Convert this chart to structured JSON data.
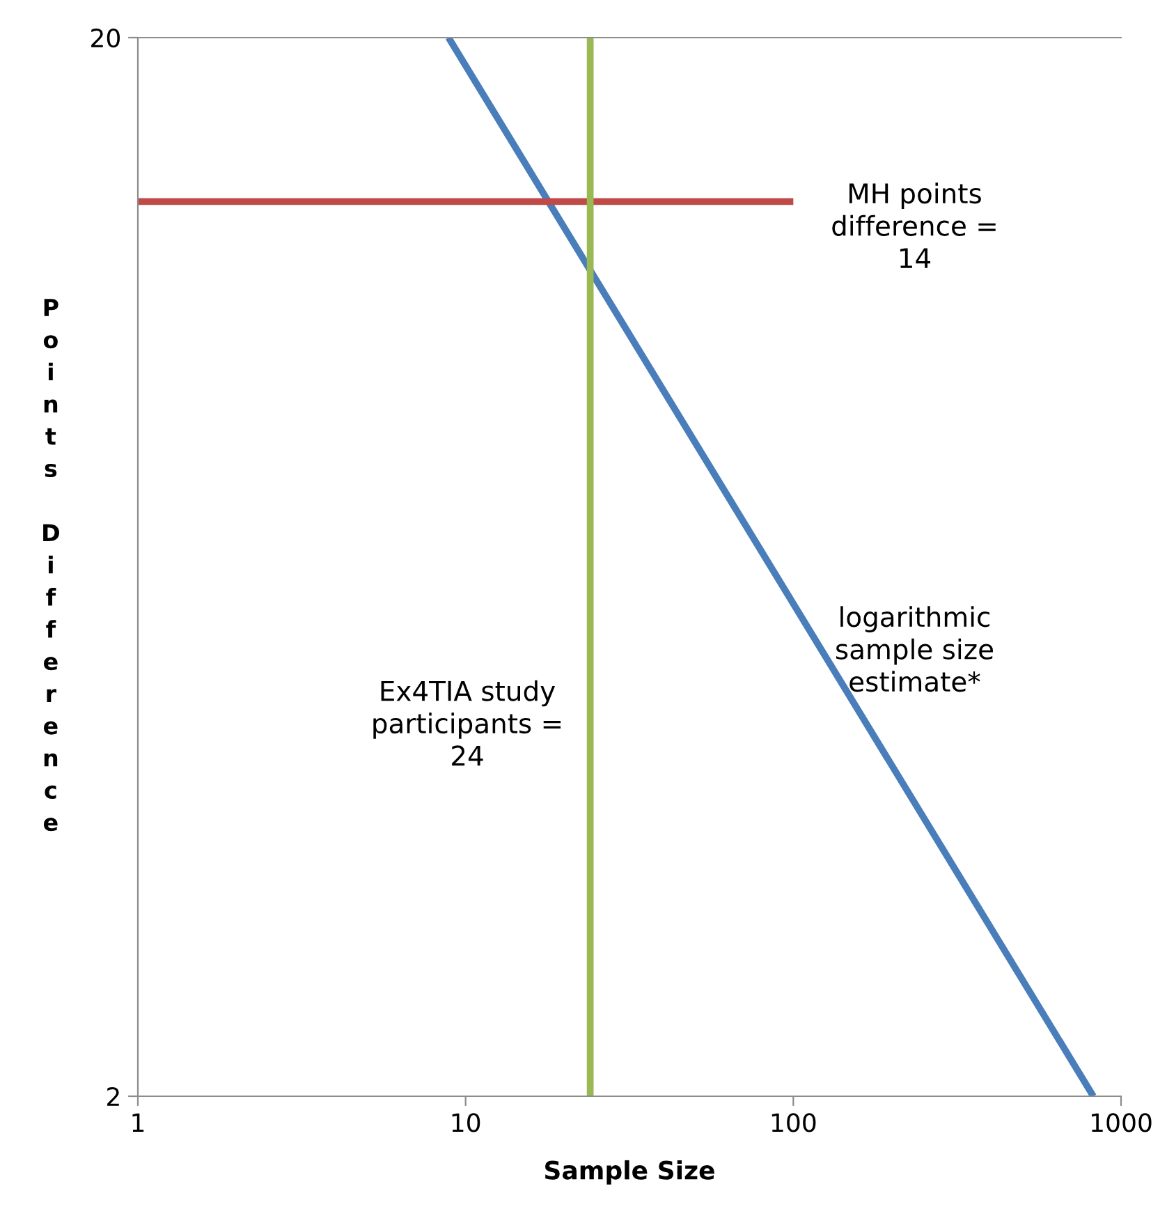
{
  "chart_data": {
    "type": "line",
    "xlabel": "Sample Size",
    "ylabel": "Points Difference",
    "log": "xy",
    "xlim": [
      1,
      1000
    ],
    "xticks": [
      1,
      10,
      100,
      1000
    ],
    "ylim": [
      2,
      20
    ],
    "yticks": [
      2,
      20
    ],
    "grid": false,
    "legend": false,
    "marker": "none",
    "line_style": "solid",
    "series": [
      {
        "color": "#4a7ebb",
        "x": [
          8.87,
          823
        ],
        "values": [
          20,
          2
        ]
      },
      {
        "color": "#be4b48",
        "x": [
          1,
          100
        ],
        "values": [
          14,
          14
        ]
      }
    ],
    "ref_lines": [
      {
        "axis": "x",
        "value": 24,
        "label": null,
        "color": "#98b954",
        "line_style": "solid"
      }
    ],
    "annotations": [
      "MH points\ndifference =\n14",
      "Ex4TIA study\nparticipants =\n24",
      "logarithmic\nsample size\nestimate*"
    ]
  }
}
